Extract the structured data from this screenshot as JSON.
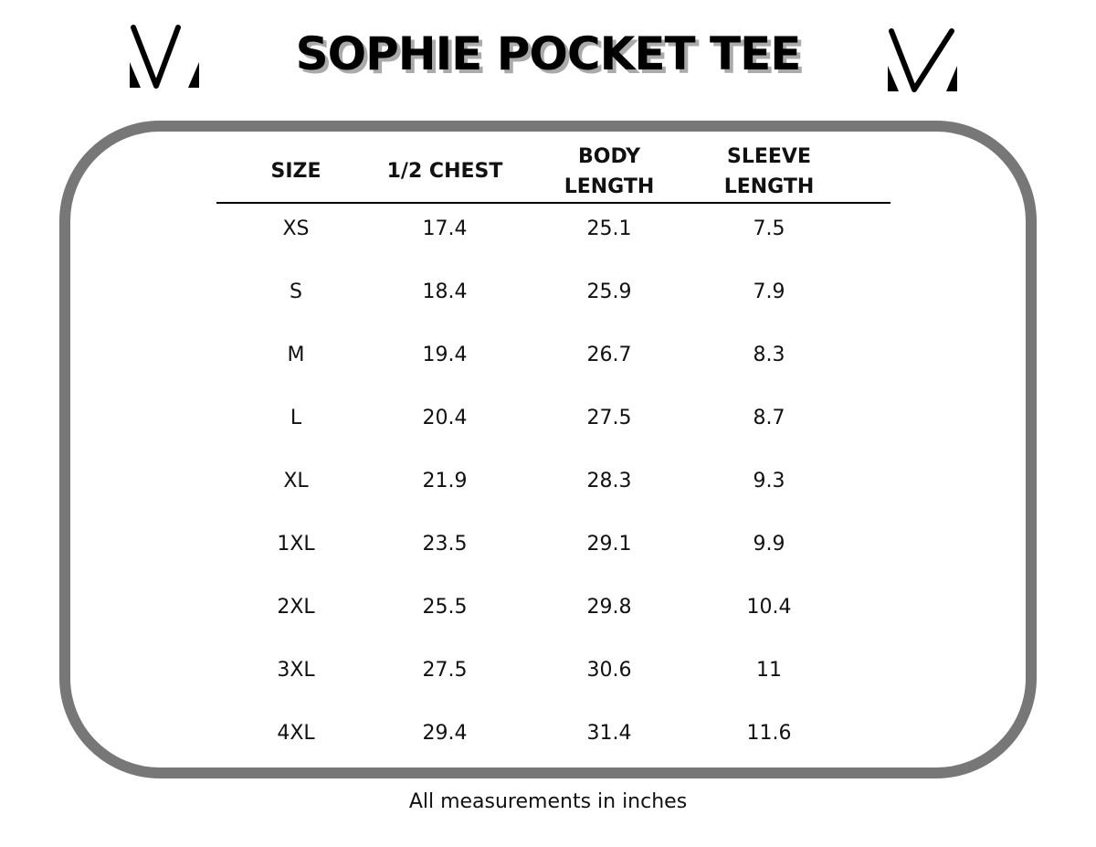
{
  "brand_logo": "MV monogram logo",
  "title": "SOPHIE POCKET TEE",
  "table": {
    "headers": [
      "SIZE",
      "1/2 CHEST",
      "BODY\nLENGTH",
      "SLEEVE\nLENGTH"
    ],
    "rows": [
      [
        "XS",
        "17.4",
        "25.1",
        "7.5"
      ],
      [
        "S",
        "18.4",
        "25.9",
        "7.9"
      ],
      [
        "M",
        "19.4",
        "26.7",
        "8.3"
      ],
      [
        "L",
        "20.4",
        "27.5",
        "8.7"
      ],
      [
        "XL",
        "21.9",
        "28.3",
        "9.3"
      ],
      [
        "1XL",
        "23.5",
        "29.1",
        "9.9"
      ],
      [
        "2XL",
        "25.5",
        "29.8",
        "10.4"
      ],
      [
        "3XL",
        "27.5",
        "30.6",
        "11"
      ],
      [
        "4XL",
        "29.4",
        "31.4",
        "11.6"
      ]
    ]
  },
  "footnote": "All measurements in inches",
  "colors": {
    "frame": "#777777",
    "text": "#111111"
  }
}
